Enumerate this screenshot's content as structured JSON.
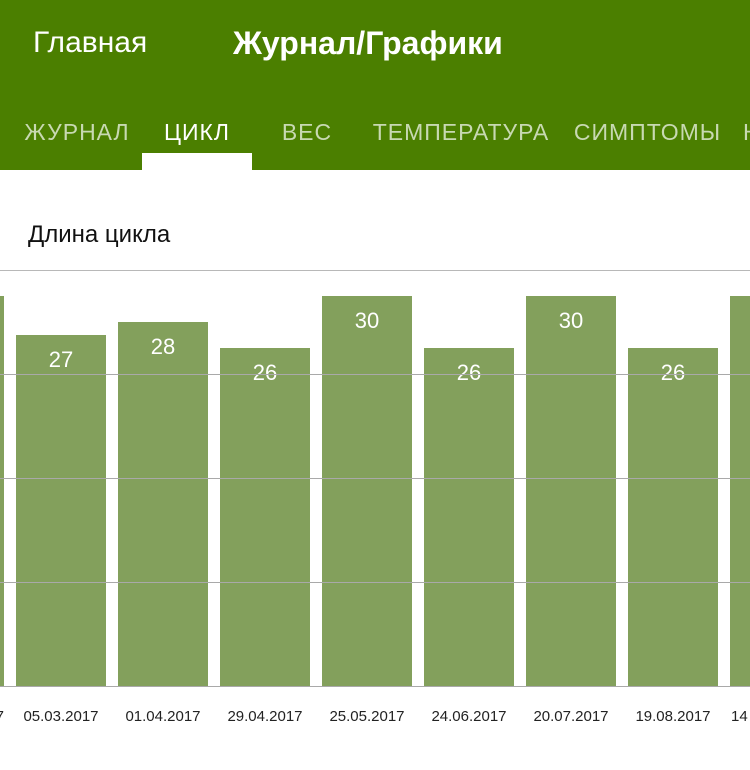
{
  "nav": {
    "back_label": "Главная",
    "title": "Журнал/Графики",
    "bar_color": "#4b7f00"
  },
  "tabs": [
    {
      "label": "ЖУРНАЛ",
      "active": false
    },
    {
      "label": "ЦИКЛ",
      "active": true
    },
    {
      "label": "ВЕС",
      "active": false
    },
    {
      "label": "ТЕМПЕРАТУРА",
      "active": false
    },
    {
      "label": "СИМПТОМЫ",
      "active": false
    }
  ],
  "chart_data": {
    "type": "bar",
    "title": "Длина цикла",
    "categories": [
      "05.03.2017",
      "01.04.2017",
      "29.04.2017",
      "25.05.2017",
      "24.06.2017",
      "20.07.2017",
      "19.08.2017"
    ],
    "values": [
      27,
      28,
      26,
      30,
      26,
      30,
      26
    ],
    "bar_color": "#83a05c",
    "label_color": "#ffffff",
    "grid": true,
    "partial_left_bar_label": "7",
    "partial_right_bar_label": "14"
  }
}
